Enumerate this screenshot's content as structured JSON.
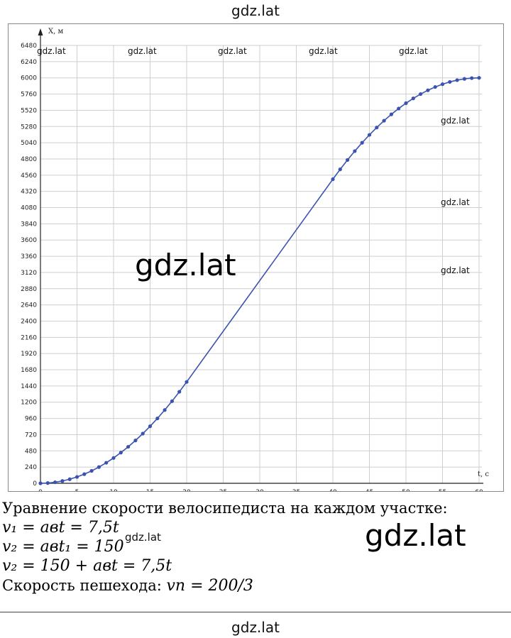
{
  "watermark": "gdz.lat",
  "chart_data": {
    "type": "scatter",
    "xlabel": "t, c",
    "ylabel": "X, м",
    "xlim": [
      0,
      60
    ],
    "ylim": [
      0,
      6480
    ],
    "x_ticks": [
      0,
      5,
      10,
      15,
      20,
      25,
      30,
      35,
      40,
      45,
      50,
      55,
      60
    ],
    "y_ticks": [
      0,
      240,
      480,
      720,
      960,
      1200,
      1440,
      1680,
      1920,
      2160,
      2400,
      2640,
      2880,
      3120,
      3360,
      3600,
      3840,
      4080,
      4320,
      4560,
      4800,
      5040,
      5280,
      5520,
      5760,
      6000,
      6240,
      6480
    ],
    "grid": true,
    "series": [
      {
        "color": "#3a53b0",
        "x": [
          0,
          1,
          2,
          3,
          4,
          5,
          6,
          7,
          8,
          9,
          10,
          11,
          12,
          13,
          14,
          15,
          16,
          17,
          18,
          19,
          20,
          40,
          41,
          42,
          43,
          44,
          45,
          46,
          47,
          48,
          49,
          50,
          51,
          52,
          53,
          54,
          55,
          56,
          57,
          58,
          59,
          60
        ],
        "y": [
          0,
          4,
          15,
          34,
          60,
          94,
          135,
          184,
          240,
          304,
          375,
          454,
          540,
          634,
          735,
          844,
          960,
          1084,
          1215,
          1354,
          1500,
          4500,
          4646,
          4785,
          4916,
          5040,
          5156,
          5265,
          5366,
          5460,
          5546,
          5625,
          5696,
          5760,
          5816,
          5865,
          5906,
          5940,
          5966,
          5985,
          5996,
          6000
        ]
      }
    ]
  },
  "text": {
    "caption": "Уравнение скорости велосипедиста на каждом участке:",
    "eq1": "v₁ = aвt = 7,5t",
    "eq2": "v₂ = aвt₁ = 150",
    "eq3": "v₂ = 150 + aвt = 7,5t",
    "eq4_prefix": "Скорость пешехода: ",
    "eq4_math": "vп = 200/3"
  }
}
